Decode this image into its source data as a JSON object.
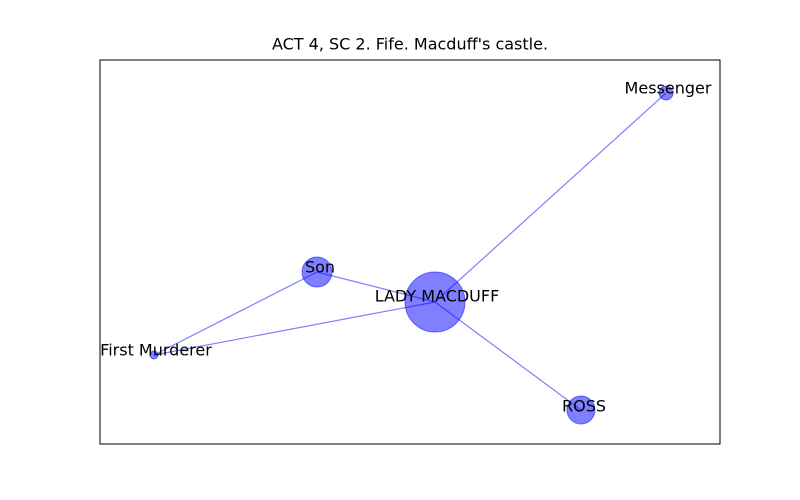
{
  "title": "ACT 4, SC 2. Fife. Macduff's castle.",
  "nodes": [
    {
      "label": "Messenger"
    },
    {
      "label": "Son"
    },
    {
      "label": "LADY MACDUFF"
    },
    {
      "label": "First Murderer"
    },
    {
      "label": "ROSS"
    }
  ]
}
